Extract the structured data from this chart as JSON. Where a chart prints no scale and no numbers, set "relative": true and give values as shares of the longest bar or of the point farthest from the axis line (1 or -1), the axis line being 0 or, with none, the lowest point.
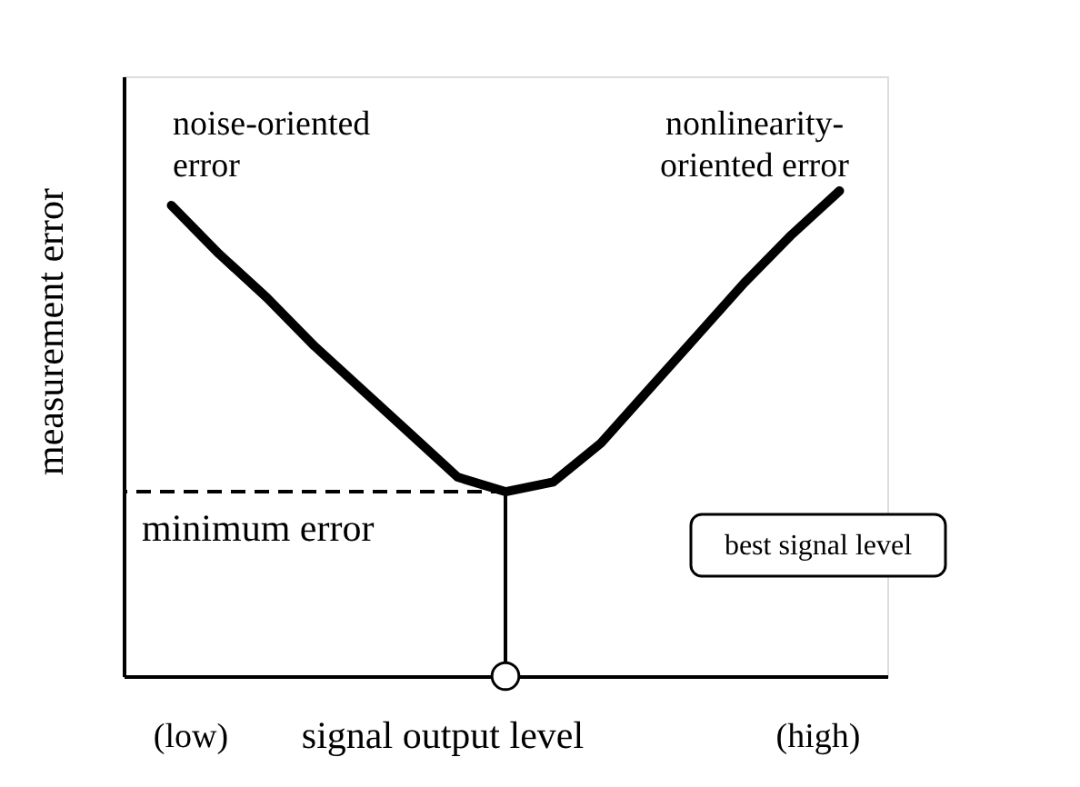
{
  "chart_data": {
    "type": "line",
    "relative": true,
    "xlabel": "signal output level",
    "ylabel": "measurement error",
    "categories": [
      null,
      null,
      null,
      null,
      null,
      null,
      null,
      null,
      null,
      null,
      null,
      null,
      null,
      null,
      null
    ],
    "series": [
      {
        "color": "#000000",
        "values": [
          0.97,
          0.87,
          0.78,
          0.68,
          0.59,
          0.5,
          0.41,
          0.38,
          0.4,
          0.48,
          0.59,
          0.7,
          0.81,
          0.91,
          1.0
        ]
      }
    ],
    "ref_lines": [
      {
        "axis": "y",
        "value": 0.38,
        "label": "minimum error",
        "line_style": "dashed"
      }
    ],
    "annotations": [
      "noise-oriented error",
      "nonlinearity-oriented error",
      "best signal level",
      "(low)",
      "(high)"
    ],
    "grid": false,
    "marker": "none",
    "line_style": "solid"
  }
}
